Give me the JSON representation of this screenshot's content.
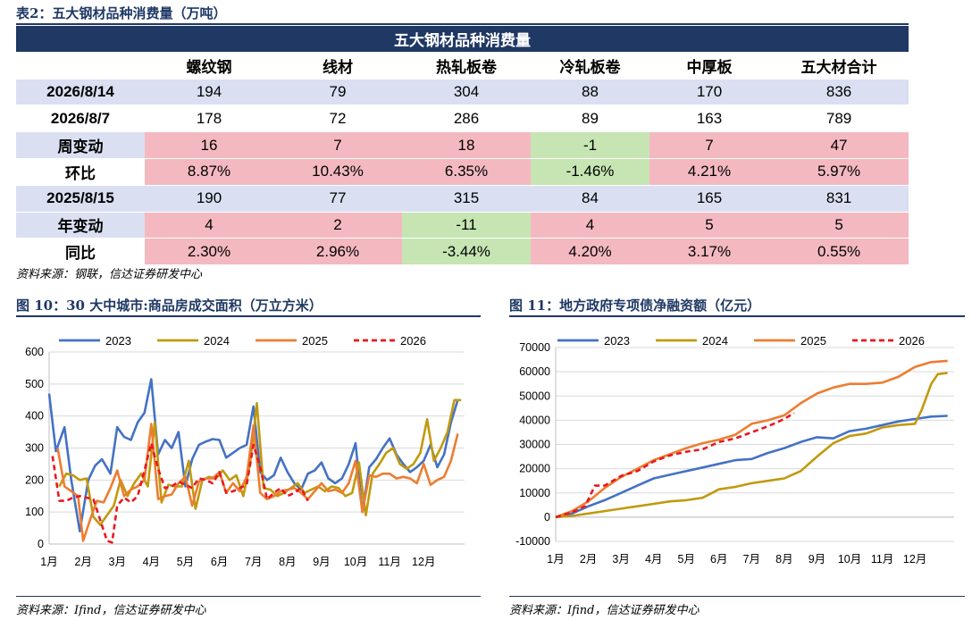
{
  "table": {
    "caption": "表2：五大钢材品种消费量（万吨）",
    "title": "五大钢材品种消费量",
    "columns": [
      "螺纹钢",
      "线材",
      "热轧板卷",
      "冷轧板卷",
      "中厚板",
      "五大材合计"
    ],
    "rows": [
      {
        "label": "2026/8/14",
        "style": "blue",
        "values": [
          "194",
          "79",
          "304",
          "88",
          "170",
          "836"
        ]
      },
      {
        "label": "2026/8/7",
        "style": "white",
        "values": [
          "178",
          "72",
          "286",
          "89",
          "163",
          "789"
        ]
      },
      {
        "label": "周变动",
        "style": "change",
        "values": [
          "16",
          "7",
          "18",
          "-1",
          "7",
          "47"
        ]
      },
      {
        "label": "环比",
        "style": "change",
        "values": [
          "8.87%",
          "10.43%",
          "6.35%",
          "-1.46%",
          "4.21%",
          "5.97%"
        ]
      },
      {
        "label": "2025/8/15",
        "style": "blue",
        "values": [
          "190",
          "77",
          "315",
          "84",
          "165",
          "831"
        ]
      },
      {
        "label": "年变动",
        "style": "change",
        "values": [
          "4",
          "2",
          "-11",
          "4",
          "5",
          "5"
        ]
      },
      {
        "label": "同比",
        "style": "change",
        "values": [
          "2.30%",
          "2.96%",
          "-3.44%",
          "4.20%",
          "3.17%",
          "0.55%"
        ]
      }
    ],
    "source": "资料来源：钢联，信达证券研发中心"
  },
  "chart_data": [
    {
      "type": "line",
      "caption": "图 10：30 大中城市:商品房成交面积（万立方米）",
      "ylim": [
        0,
        600
      ],
      "yticks": [
        0,
        100,
        200,
        300,
        400,
        500,
        600
      ],
      "xticks": [
        "1月",
        "2月",
        "3月",
        "4月",
        "5月",
        "6月",
        "7月",
        "8月",
        "9月",
        "10月",
        "11月",
        "12月"
      ],
      "x_domain": [
        1,
        13.2
      ],
      "grid": true,
      "legend": "top",
      "source": "资料来源：Ifind，信达证券研发中心",
      "series": [
        {
          "name": "2023",
          "color": "#4472c4",
          "dash": false,
          "x": [
            1.0,
            1.2,
            1.45,
            1.65,
            1.9,
            2.15,
            2.35,
            2.55,
            2.8,
            3.0,
            3.2,
            3.4,
            3.6,
            3.8,
            4.0,
            4.2,
            4.4,
            4.6,
            4.8,
            5.0,
            5.2,
            5.4,
            5.6,
            5.8,
            6.0,
            6.2,
            6.4,
            6.6,
            6.8,
            7.0,
            7.2,
            7.4,
            7.6,
            7.8,
            8.0,
            8.2,
            8.4,
            8.6,
            8.8,
            9.0,
            9.2,
            9.4,
            9.6,
            9.8,
            10.0,
            10.2,
            10.4,
            10.6,
            10.8,
            11.0,
            11.2,
            11.4,
            11.6,
            11.8,
            12.0,
            12.2,
            12.4,
            12.6,
            12.8,
            13.0
          ],
          "y": [
            470,
            290,
            365,
            200,
            40,
            200,
            245,
            265,
            220,
            365,
            335,
            325,
            380,
            410,
            515,
            280,
            325,
            300,
            350,
            180,
            265,
            310,
            320,
            328,
            325,
            270,
            285,
            300,
            310,
            430,
            225,
            200,
            215,
            270,
            225,
            190,
            170,
            220,
            230,
            255,
            205,
            190,
            205,
            250,
            315,
            100,
            240,
            265,
            300,
            330,
            280,
            250,
            225,
            240,
            260,
            310,
            240,
            280,
            380,
            450
          ]
        },
        {
          "name": "2024",
          "color": "#c09a0e",
          "dash": false,
          "x": [
            1.3,
            1.5,
            1.7,
            1.9,
            2.1,
            2.3,
            2.5,
            2.7,
            2.9,
            3.1,
            3.3,
            3.5,
            3.7,
            3.9,
            4.1,
            4.3,
            4.5,
            4.7,
            4.9,
            5.1,
            5.3,
            5.5,
            5.7,
            5.9,
            6.1,
            6.3,
            6.5,
            6.7,
            6.9,
            7.1,
            7.3,
            7.5,
            7.7,
            7.9,
            8.1,
            8.3,
            8.5,
            8.7,
            8.9,
            9.1,
            9.3,
            9.5,
            9.7,
            9.9,
            10.1,
            10.3,
            10.5,
            10.7,
            10.9,
            11.1,
            11.3,
            11.5,
            11.7,
            11.9,
            12.1,
            12.3,
            12.5,
            12.7,
            12.9,
            13.1
          ],
          "y": [
            180,
            220,
            215,
            200,
            205,
            85,
            60,
            90,
            120,
            200,
            150,
            190,
            220,
            180,
            380,
            130,
            185,
            180,
            180,
            260,
            110,
            200,
            210,
            205,
            230,
            200,
            215,
            150,
            250,
            440,
            175,
            170,
            150,
            160,
            175,
            190,
            160,
            170,
            180,
            165,
            180,
            175,
            150,
            160,
            255,
            90,
            220,
            250,
            285,
            300,
            250,
            235,
            250,
            285,
            390,
            260,
            300,
            350,
            450,
            450
          ]
        },
        {
          "name": "2025",
          "color": "#ed7d31",
          "dash": false,
          "x": [
            1.25,
            1.45,
            1.65,
            1.85,
            2.0,
            2.2,
            2.4,
            2.6,
            2.8,
            3.0,
            3.2,
            3.4,
            3.6,
            3.8,
            4.0,
            4.2,
            4.4,
            4.6,
            4.8,
            5.0,
            5.2,
            5.4,
            5.6,
            5.8,
            6.0,
            6.2,
            6.4,
            6.6,
            6.8,
            7.0,
            7.2,
            7.4,
            7.6,
            7.8,
            8.0,
            8.2,
            8.4,
            8.6,
            8.8,
            9.0,
            9.2,
            9.4,
            9.6,
            9.8,
            10.0,
            10.2,
            10.4,
            10.6,
            10.8,
            11.0,
            11.2,
            11.4,
            11.6,
            11.8,
            12.0,
            12.2,
            12.4,
            12.6,
            12.8,
            13.0
          ],
          "y": [
            300,
            180,
            165,
            150,
            10,
            75,
            135,
            130,
            175,
            230,
            150,
            170,
            180,
            200,
            375,
            140,
            150,
            155,
            190,
            210,
            120,
            195,
            205,
            205,
            225,
            160,
            190,
            165,
            210,
            370,
            160,
            140,
            150,
            165,
            170,
            175,
            160,
            140,
            165,
            190,
            165,
            170,
            160,
            190,
            260,
            100,
            215,
            210,
            220,
            220,
            205,
            210,
            205,
            190,
            250,
            185,
            200,
            210,
            260,
            345
          ]
        },
        {
          "name": "2026",
          "color": "#e8191e",
          "dash": true,
          "x": [
            1.1,
            1.3,
            1.5,
            1.7,
            1.9,
            2.1,
            2.3,
            2.5,
            2.7,
            2.85,
            3.0,
            3.2,
            3.4,
            3.6,
            3.8,
            4.0,
            4.2,
            4.4,
            4.6,
            4.8,
            5.0,
            5.2,
            5.4,
            5.6,
            5.8,
            6.0,
            6.2,
            6.4,
            6.6,
            6.8,
            7.0,
            7.2,
            7.4,
            7.6,
            7.8,
            8.0,
            8.2,
            8.4,
            8.6
          ],
          "y": [
            275,
            135,
            135,
            145,
            150,
            145,
            140,
            75,
            10,
            5,
            120,
            145,
            130,
            150,
            230,
            315,
            235,
            175,
            180,
            195,
            185,
            175,
            205,
            200,
            190,
            225,
            160,
            165,
            175,
            185,
            310,
            240,
            140,
            160,
            175,
            150,
            160,
            175,
            135
          ]
        }
      ]
    },
    {
      "type": "line",
      "caption": "图 11：地方政府专项债净融资额（亿元）",
      "ylim": [
        -10000,
        70000
      ],
      "yticks": [
        -10000,
        0,
        10000,
        20000,
        30000,
        40000,
        50000,
        60000,
        70000
      ],
      "xticks": [
        "1月",
        "2月",
        "3月",
        "4月",
        "5月",
        "6月",
        "7月",
        "8月",
        "9月",
        "10月",
        "11月",
        "12月"
      ],
      "x_domain": [
        1,
        13.2
      ],
      "grid": true,
      "legend": "top",
      "source": "资料来源：Ifind，信达证券研发中心",
      "series": [
        {
          "name": "2023",
          "color": "#4472c4",
          "dash": false,
          "x": [
            1.0,
            1.5,
            2.0,
            2.5,
            3.0,
            3.5,
            4.0,
            4.5,
            5.0,
            5.5,
            6.0,
            6.5,
            7.0,
            7.5,
            8.0,
            8.5,
            9.0,
            9.5,
            10.0,
            10.5,
            11.0,
            11.5,
            12.0,
            12.5,
            13.0
          ],
          "y": [
            0,
            1500,
            4500,
            7000,
            10000,
            13000,
            16000,
            17500,
            19000,
            20500,
            22000,
            23500,
            24000,
            26500,
            28500,
            31000,
            33000,
            32500,
            35500,
            36500,
            38000,
            39500,
            40500,
            41500,
            41800
          ]
        },
        {
          "name": "2024",
          "color": "#c09a0e",
          "dash": false,
          "x": [
            1.0,
            1.5,
            2.0,
            2.5,
            3.0,
            3.5,
            4.0,
            4.5,
            5.0,
            5.5,
            6.0,
            6.5,
            7.0,
            7.5,
            8.0,
            8.5,
            9.0,
            9.5,
            10.0,
            10.5,
            11.0,
            11.5,
            12.0,
            12.2,
            12.5,
            12.7,
            13.0
          ],
          "y": [
            0,
            500,
            1500,
            2500,
            3500,
            4500,
            5500,
            6500,
            7000,
            8000,
            11500,
            12500,
            14000,
            15000,
            16000,
            19000,
            25000,
            30500,
            33500,
            34500,
            37000,
            38000,
            38500,
            44000,
            55000,
            59000,
            59500
          ]
        },
        {
          "name": "2025",
          "color": "#ed7d31",
          "dash": false,
          "x": [
            1.0,
            1.5,
            2.0,
            2.5,
            3.0,
            3.5,
            4.0,
            4.5,
            5.0,
            5.5,
            6.0,
            6.5,
            7.0,
            7.5,
            8.0,
            8.5,
            9.0,
            9.5,
            10.0,
            10.5,
            11.0,
            11.5,
            12.0,
            12.5,
            13.0
          ],
          "y": [
            0,
            2500,
            6500,
            12000,
            16500,
            20000,
            23500,
            26000,
            28500,
            30500,
            32000,
            34000,
            38500,
            40000,
            42000,
            47000,
            51000,
            53500,
            55000,
            55000,
            55500,
            58000,
            62000,
            64000,
            64500
          ]
        },
        {
          "name": "2026",
          "color": "#e8191e",
          "dash": true,
          "x": [
            1.0,
            1.5,
            1.9,
            2.2,
            2.5,
            3.0,
            3.5,
            4.0,
            4.5,
            5.0,
            5.5,
            6.0,
            6.5,
            7.0,
            7.5,
            8.0,
            8.3
          ],
          "y": [
            0,
            2000,
            4500,
            13000,
            13000,
            17000,
            19000,
            23000,
            25500,
            27000,
            28000,
            31000,
            32500,
            35000,
            37500,
            40500,
            43000
          ]
        }
      ]
    }
  ]
}
